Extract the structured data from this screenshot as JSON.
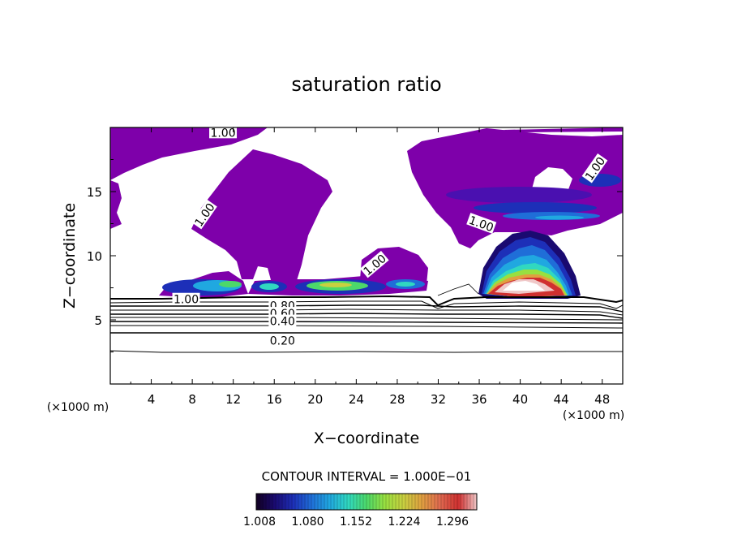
{
  "chart_data": {
    "type": "heatmap",
    "title": "saturation ratio",
    "xlabel": "X−coordinate",
    "ylabel": "Z−coordinate",
    "x_unit_left": "(×1000 m)",
    "x_unit_right": "(×1000 m)",
    "xlim": [
      0,
      50
    ],
    "ylim": [
      0,
      20
    ],
    "x_ticks": [
      4,
      8,
      12,
      16,
      20,
      24,
      28,
      32,
      36,
      40,
      44,
      48
    ],
    "y_ticks": [
      5,
      10,
      15
    ],
    "contour_interval_text": "CONTOUR INTERVAL = 1.000E−01",
    "colorbar": {
      "ticks": [
        "1.008",
        "1.080",
        "1.152",
        "1.224",
        "1.296"
      ],
      "colors": [
        "#120022",
        "#1a0a70",
        "#1d2fb8",
        "#1f6ed8",
        "#20a8e0",
        "#30d8c0",
        "#4cd86a",
        "#98e040",
        "#c8d040",
        "#e0a040",
        "#e06a50",
        "#d03030",
        "#f0c8c8"
      ]
    },
    "contour_labels": [
      {
        "text": "1.00",
        "x": 11.0,
        "y": 19.6
      },
      {
        "text": "1.00",
        "x": 9.2,
        "y": 13.2,
        "rotate": -55
      },
      {
        "text": "1.00",
        "x": 25.8,
        "y": 9.3,
        "rotate": -40
      },
      {
        "text": "1.00",
        "x": 36.2,
        "y": 12.5,
        "rotate": 20
      },
      {
        "text": "1.00",
        "x": 47.3,
        "y": 16.8,
        "rotate": -55
      },
      {
        "text": "1.00",
        "x": 7.4,
        "y": 6.6
      },
      {
        "text": "0.80",
        "x": 16.8,
        "y": 6.1
      },
      {
        "text": "0.60",
        "x": 16.8,
        "y": 5.5
      },
      {
        "text": "0.40",
        "x": 16.8,
        "y": 4.9
      },
      {
        "text": "0.20",
        "x": 16.8,
        "y": 3.4
      }
    ]
  }
}
